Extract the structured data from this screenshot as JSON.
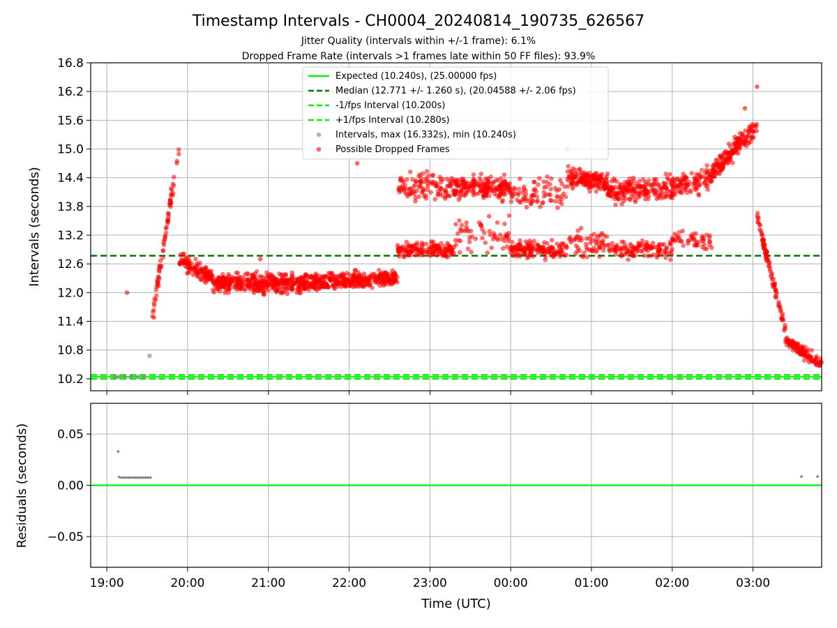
{
  "chart_data": [
    {
      "type": "scatter",
      "title": "Timestamp Intervals - CH0004_20240814_190735_626567",
      "subtitle_lines": [
        "Jitter Quality (intervals within +/-1 frame): 6.1%",
        "Dropped Frame Rate (intervals >1 frames late within 50 FF files): 93.9%"
      ],
      "xlabel": "",
      "ylabel": "Intervals (seconds)",
      "x_unit": "hours since 19:00 UTC (2024-08-14)",
      "xlim": [
        -0.2,
        8.85
      ],
      "ylim": [
        9.95,
        16.8
      ],
      "yticks": [
        "10.2",
        "10.8",
        "11.4",
        "12.0",
        "12.6",
        "13.2",
        "13.8",
        "14.4",
        "15.0",
        "15.6",
        "16.2",
        "16.8"
      ],
      "grid": true,
      "reference_lines": [
        {
          "name": "Expected (10.240s), (25.00000 fps)",
          "y": 10.24,
          "color": "#00ee00",
          "style": "solid"
        },
        {
          "name": "Median (12.771 +/- 1.260 s), (20.04588 +/- 2.06 fps)",
          "y": 12.771,
          "color": "#007700",
          "style": "dashed"
        },
        {
          "name": "-1/fps Interval (10.200s)",
          "y": 10.2,
          "color": "#00ee00",
          "style": "dashed"
        },
        {
          "name": "+1/fps Interval (10.280s)",
          "y": 10.28,
          "color": "#00ee00",
          "style": "dashed"
        }
      ],
      "series": [
        {
          "name": "Intervals, max (16.332s), min (10.240s)",
          "color": "#808080",
          "points": [
            [
              0.1,
              10.24
            ],
            [
              0.15,
              10.24
            ],
            [
              0.22,
              10.24
            ],
            [
              0.3,
              10.24
            ],
            [
              0.38,
              10.24
            ],
            [
              0.46,
              10.24
            ],
            [
              0.53,
              10.68
            ]
          ]
        },
        {
          "name": "Possible Dropped Frames",
          "color": "#ff0000",
          "segments": [
            {
              "x0": 0.55,
              "x1": 0.9,
              "y0": 11.3,
              "y1": 15.1,
              "n": 70,
              "spread": 0.25
            },
            {
              "x0": 0.9,
              "x1": 1.3,
              "y0": 12.7,
              "y1": 12.3,
              "n": 120,
              "spread": 0.25
            },
            {
              "x0": 1.3,
              "x1": 2.5,
              "y0": 12.2,
              "y1": 12.2,
              "n": 420,
              "spread": 0.28
            },
            {
              "x0": 2.5,
              "x1": 3.6,
              "y0": 12.2,
              "y1": 12.3,
              "n": 360,
              "spread": 0.25
            },
            {
              "x0": 3.6,
              "x1": 4.3,
              "y0": 12.9,
              "y1": 12.9,
              "n": 160,
              "spread": 0.22
            },
            {
              "x0": 3.6,
              "x1": 4.3,
              "y0": 14.2,
              "y1": 14.2,
              "n": 110,
              "spread": 0.45
            },
            {
              "x0": 4.3,
              "x1": 5.0,
              "y0": 14.2,
              "y1": 14.2,
              "n": 200,
              "spread": 0.35
            },
            {
              "x0": 4.3,
              "x1": 5.0,
              "y0": 13.2,
              "y1": 13.2,
              "n": 60,
              "spread": 0.5
            },
            {
              "x0": 5.0,
              "x1": 5.7,
              "y0": 12.9,
              "y1": 12.9,
              "n": 150,
              "spread": 0.25
            },
            {
              "x0": 5.0,
              "x1": 5.7,
              "y0": 14.1,
              "y1": 14.1,
              "n": 80,
              "spread": 0.45
            },
            {
              "x0": 5.7,
              "x1": 6.2,
              "y0": 14.4,
              "y1": 14.3,
              "n": 160,
              "spread": 0.3
            },
            {
              "x0": 5.7,
              "x1": 6.2,
              "y0": 13.0,
              "y1": 13.0,
              "n": 60,
              "spread": 0.4
            },
            {
              "x0": 6.2,
              "x1": 7.0,
              "y0": 14.1,
              "y1": 14.2,
              "n": 200,
              "spread": 0.35
            },
            {
              "x0": 6.2,
              "x1": 7.0,
              "y0": 12.9,
              "y1": 12.9,
              "n": 120,
              "spread": 0.3
            },
            {
              "x0": 7.0,
              "x1": 7.5,
              "y0": 14.2,
              "y1": 14.4,
              "n": 110,
              "spread": 0.35
            },
            {
              "x0": 7.0,
              "x1": 7.5,
              "y0": 13.1,
              "y1": 13.1,
              "n": 50,
              "spread": 0.3
            },
            {
              "x0": 7.5,
              "x1": 8.05,
              "y0": 14.5,
              "y1": 15.5,
              "n": 170,
              "spread": 0.3
            },
            {
              "x0": 8.05,
              "x1": 8.4,
              "y0": 13.6,
              "y1": 11.2,
              "n": 90,
              "spread": 0.2
            },
            {
              "x0": 8.4,
              "x1": 8.85,
              "y0": 11.0,
              "y1": 10.5,
              "n": 120,
              "spread": 0.18
            }
          ],
          "outliers": [
            [
              8.05,
              16.3
            ],
            [
              7.9,
              15.85
            ],
            [
              3.1,
              14.7
            ],
            [
              5.7,
              15.0
            ],
            [
              1.9,
              12.7
            ],
            [
              0.25,
              12.0
            ]
          ]
        }
      ],
      "legend": "top-center"
    },
    {
      "type": "scatter",
      "xlabel": "Time (UTC)",
      "ylabel": "Residuals (seconds)",
      "x_unit": "hours since 19:00 UTC (2024-08-14)",
      "xlim": [
        -0.2,
        8.85
      ],
      "ylim": [
        -0.08,
        0.08
      ],
      "yticks": [
        "0.05",
        "0.00",
        "−0.05"
      ],
      "xticks": [
        "19:00",
        "20:00",
        "21:00",
        "22:00",
        "23:00",
        "00:00",
        "01:00",
        "02:00",
        "03:00"
      ],
      "grid": true,
      "reference_lines": [
        {
          "y": 0.0,
          "color": "#00ee00",
          "style": "solid"
        }
      ],
      "series": [
        {
          "color": "#808080",
          "points": [
            [
              0.14,
              0.033
            ],
            [
              0.15,
              0.008
            ],
            [
              0.18,
              0.0075
            ],
            [
              0.21,
              0.0075
            ],
            [
              0.24,
              0.0075
            ],
            [
              0.27,
              0.0075
            ],
            [
              0.3,
              0.0075
            ],
            [
              0.33,
              0.0075
            ],
            [
              0.36,
              0.0075
            ],
            [
              0.39,
              0.0075
            ],
            [
              0.42,
              0.0075
            ],
            [
              0.45,
              0.0075
            ],
            [
              0.48,
              0.0075
            ],
            [
              0.51,
              0.0075
            ],
            [
              0.54,
              0.0075
            ],
            [
              8.6,
              0.0085
            ],
            [
              8.8,
              0.0085
            ]
          ]
        }
      ]
    }
  ]
}
